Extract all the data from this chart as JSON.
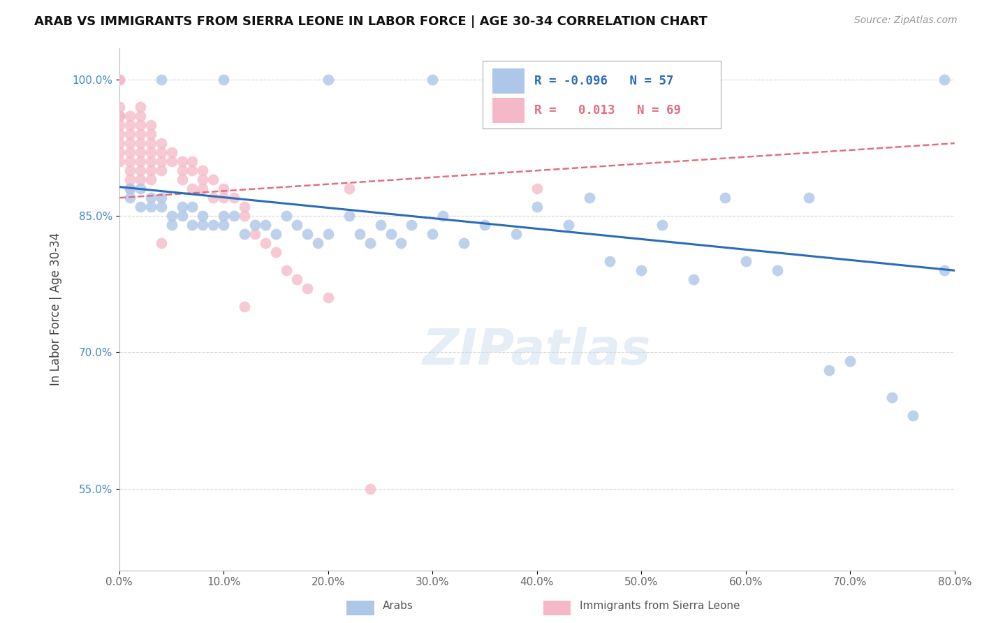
{
  "title": "ARAB VS IMMIGRANTS FROM SIERRA LEONE IN LABOR FORCE | AGE 30-34 CORRELATION CHART",
  "source": "Source: ZipAtlas.com",
  "ylabel": "In Labor Force | Age 30-34",
  "xlim": [
    0.0,
    0.8
  ],
  "ylim": [
    0.46,
    1.035
  ],
  "xticks": [
    0.0,
    0.1,
    0.2,
    0.3,
    0.4,
    0.5,
    0.6,
    0.7,
    0.8
  ],
  "xticklabels": [
    "0.0%",
    "10.0%",
    "20.0%",
    "30.0%",
    "40.0%",
    "50.0%",
    "60.0%",
    "70.0%",
    "80.0%"
  ],
  "yticks": [
    0.55,
    0.7,
    0.85,
    1.0
  ],
  "yticklabels": [
    "55.0%",
    "70.0%",
    "85.0%",
    "100.0%"
  ],
  "legend_r_blue": "-0.096",
  "legend_n_blue": "57",
  "legend_r_pink": "0.013",
  "legend_n_pink": "69",
  "legend_label_blue": "Arabs",
  "legend_label_pink": "Immigrants from Sierra Leone",
  "blue_color": "#aec6e8",
  "pink_color": "#f5b8c8",
  "blue_line_color": "#2b6cb8",
  "pink_line_color": "#e07080",
  "watermark": "ZIPatlas",
  "blue_x": [
    0.01,
    0.01,
    0.02,
    0.02,
    0.03,
    0.03,
    0.04,
    0.04,
    0.05,
    0.05,
    0.06,
    0.06,
    0.07,
    0.07,
    0.08,
    0.08,
    0.09,
    0.1,
    0.1,
    0.11,
    0.12,
    0.13,
    0.14,
    0.15,
    0.16,
    0.17,
    0.18,
    0.19,
    0.2,
    0.22,
    0.23,
    0.24,
    0.25,
    0.26,
    0.27,
    0.28,
    0.3,
    0.31,
    0.33,
    0.35,
    0.38,
    0.4,
    0.43,
    0.45,
    0.47,
    0.5,
    0.52,
    0.55,
    0.58,
    0.6,
    0.63,
    0.66,
    0.68,
    0.7,
    0.74,
    0.76,
    0.79
  ],
  "blue_y": [
    0.88,
    0.87,
    0.88,
    0.86,
    0.87,
    0.86,
    0.87,
    0.86,
    0.85,
    0.84,
    0.86,
    0.85,
    0.84,
    0.86,
    0.85,
    0.84,
    0.84,
    0.85,
    0.84,
    0.85,
    0.83,
    0.84,
    0.84,
    0.83,
    0.85,
    0.84,
    0.83,
    0.82,
    0.83,
    0.85,
    0.83,
    0.82,
    0.84,
    0.83,
    0.82,
    0.84,
    0.83,
    0.85,
    0.82,
    0.84,
    0.83,
    0.86,
    0.84,
    0.87,
    0.8,
    0.79,
    0.84,
    0.78,
    0.87,
    0.8,
    0.79,
    0.87,
    0.68,
    0.69,
    0.65,
    0.63,
    0.79
  ],
  "blue_x_top": [
    0.04,
    0.1,
    0.2,
    0.3,
    0.5,
    0.79
  ],
  "blue_y_top": [
    1.0,
    1.0,
    1.0,
    1.0,
    1.0,
    1.0
  ],
  "pink_x": [
    0.0,
    0.0,
    0.0,
    0.0,
    0.0,
    0.0,
    0.0,
    0.01,
    0.01,
    0.01,
    0.01,
    0.01,
    0.01,
    0.01,
    0.01,
    0.01,
    0.02,
    0.02,
    0.02,
    0.02,
    0.02,
    0.02,
    0.02,
    0.02,
    0.02,
    0.03,
    0.03,
    0.03,
    0.03,
    0.03,
    0.03,
    0.03,
    0.04,
    0.04,
    0.04,
    0.04,
    0.05,
    0.05,
    0.06,
    0.06,
    0.06,
    0.07,
    0.07,
    0.07,
    0.08,
    0.08,
    0.08,
    0.09,
    0.09,
    0.1,
    0.1,
    0.11,
    0.12,
    0.12,
    0.13,
    0.14,
    0.15,
    0.16,
    0.17,
    0.18,
    0.2,
    0.04,
    0.12,
    0.22,
    0.24,
    0.0,
    0.0,
    0.0,
    0.4
  ],
  "pink_y": [
    0.97,
    0.96,
    0.95,
    0.94,
    0.93,
    0.92,
    0.91,
    0.96,
    0.95,
    0.94,
    0.93,
    0.92,
    0.91,
    0.9,
    0.89,
    0.88,
    0.97,
    0.96,
    0.95,
    0.94,
    0.93,
    0.92,
    0.91,
    0.9,
    0.89,
    0.95,
    0.94,
    0.93,
    0.92,
    0.91,
    0.9,
    0.89,
    0.93,
    0.92,
    0.91,
    0.9,
    0.92,
    0.91,
    0.91,
    0.9,
    0.89,
    0.91,
    0.9,
    0.88,
    0.9,
    0.89,
    0.88,
    0.89,
    0.87,
    0.88,
    0.87,
    0.87,
    0.86,
    0.85,
    0.83,
    0.82,
    0.81,
    0.79,
    0.78,
    0.77,
    0.76,
    0.82,
    0.75,
    0.88,
    0.55,
    1.0,
    1.0,
    0.96,
    0.88
  ],
  "blue_line_x0": 0.0,
  "blue_line_y0": 0.882,
  "blue_line_x1": 0.8,
  "blue_line_y1": 0.79,
  "pink_line_x0": 0.0,
  "pink_line_y0": 0.87,
  "pink_line_x1": 0.8,
  "pink_line_y1": 0.93
}
